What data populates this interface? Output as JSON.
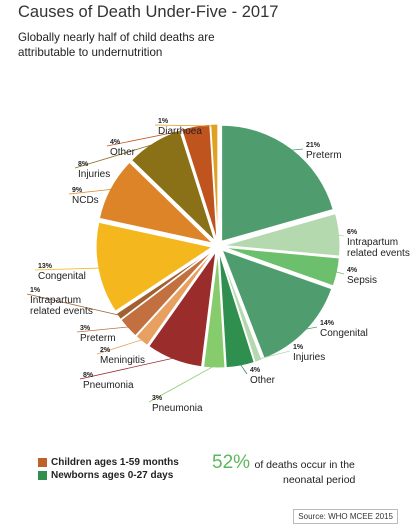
{
  "header": {
    "title": "Causes of Death Under-Five - 2017",
    "subtitle": "Globally nearly half of child deaths are attributable to undernutrition"
  },
  "chart_data": {
    "type": "pie",
    "title": "Causes of Death Under-Five - 2017",
    "slices": [
      {
        "value_label": "21%",
        "name": "Preterm",
        "value": 21,
        "group": "newborn",
        "color": "#4f9d6f"
      },
      {
        "value_label": "6%",
        "name": "Intrapartum related events",
        "value": 6,
        "group": "newborn",
        "color": "#b4d9ae"
      },
      {
        "value_label": "4%",
        "name": "Sepsis",
        "value": 4,
        "group": "newborn",
        "color": "#6cbf6c"
      },
      {
        "value_label": "14%",
        "name": "Congenital",
        "value": 14,
        "group": "newborn",
        "color": "#4f9d6f"
      },
      {
        "value_label": "1%",
        "name": "Injuries",
        "value": 1,
        "group": "newborn",
        "color": "#b4d9ae"
      },
      {
        "value_label": "4%",
        "name": "Other",
        "value": 4,
        "group": "newborn",
        "color": "#2f8f4f"
      },
      {
        "value_label": "3%",
        "name": "Pneumonia",
        "value": 3,
        "group": "newborn",
        "color": "#86cc6c"
      },
      {
        "value_label": "8%",
        "name": "Pneumonia",
        "value": 8,
        "group": "child",
        "color": "#9b2c2c"
      },
      {
        "value_label": "2%",
        "name": "Meningitis",
        "value": 2,
        "group": "child",
        "color": "#e8a060"
      },
      {
        "value_label": "3%",
        "name": "Preterm",
        "value": 3,
        "group": "child",
        "color": "#c27040"
      },
      {
        "value_label": "1%",
        "name": "Intrapartum related events",
        "value": 1,
        "group": "child",
        "color": "#a06030"
      },
      {
        "value_label": "13%",
        "name": "Congenital",
        "value": 13,
        "group": "child",
        "color": "#f4b81e"
      },
      {
        "value_label": "9%",
        "name": "NCDs",
        "value": 9,
        "group": "child",
        "color": "#dd8428"
      },
      {
        "value_label": "8%",
        "name": "Injuries",
        "value": 8,
        "group": "child",
        "color": "#8a7016"
      },
      {
        "value_label": "4%",
        "name": "Other",
        "value": 4,
        "group": "child",
        "color": "#c0541e"
      },
      {
        "value_label": "1%",
        "name": "Diarrhoea",
        "value": 1,
        "group": "child",
        "color": "#e0a020"
      }
    ],
    "legend": [
      {
        "label": "Children ages 1-59 months",
        "color": "#c0602a"
      },
      {
        "label": "Newborns ages 0-27 days",
        "color": "#2f8f4f"
      }
    ]
  },
  "stat": {
    "value": "52%",
    "text_line1": "of deaths occur in the",
    "text_line2": "neonatal period"
  },
  "source": "Source: WHO MCEE 2015"
}
